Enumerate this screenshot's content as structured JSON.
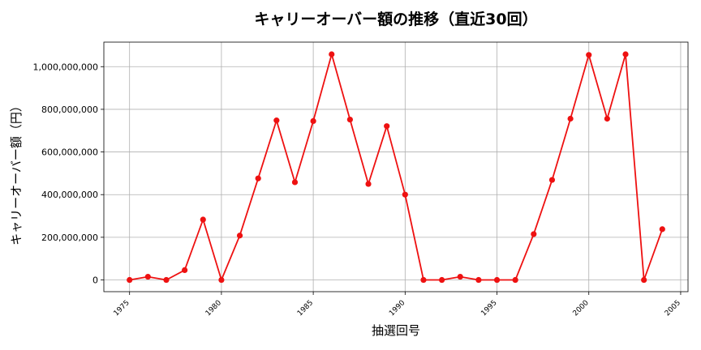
{
  "chart_data": {
    "type": "line",
    "title": "キャリーオーバー額の推移（直近30回）",
    "xlabel": "抽選回号",
    "ylabel": "キャリーオーバー額（円）",
    "xlim": [
      1973.6,
      2005.4
    ],
    "ylim": [
      -55000000,
      1115000000
    ],
    "x_ticks": [
      1975,
      1980,
      1985,
      1990,
      1995,
      2000,
      2005
    ],
    "x_tick_labels": [
      "1975",
      "1980",
      "1985",
      "1990",
      "1995",
      "2000",
      "2005"
    ],
    "y_ticks": [
      0,
      200000000,
      400000000,
      600000000,
      800000000,
      1000000000
    ],
    "y_tick_labels": [
      "0",
      "200,000,000",
      "400,000,000",
      "600,000,000",
      "800,000,000",
      "1,000,000,000"
    ],
    "grid": true,
    "color": "#ee1111",
    "x": [
      1975,
      1976,
      1977,
      1978,
      1979,
      1980,
      1981,
      1982,
      1983,
      1984,
      1985,
      1986,
      1987,
      1988,
      1989,
      1990,
      1991,
      1992,
      1993,
      1994,
      1995,
      1996,
      1997,
      1998,
      1999,
      2000,
      2001,
      2002,
      2003,
      2004
    ],
    "values": [
      0,
      15000000,
      0,
      46000000,
      283000000,
      0,
      208000000,
      476000000,
      748000000,
      458000000,
      745000000,
      1058000000,
      752000000,
      450000000,
      721000000,
      400000000,
      0,
      0,
      15000000,
      0,
      0,
      0,
      215000000,
      469000000,
      756000000,
      1055000000,
      756000000,
      1058000000,
      0,
      238000000
    ]
  }
}
